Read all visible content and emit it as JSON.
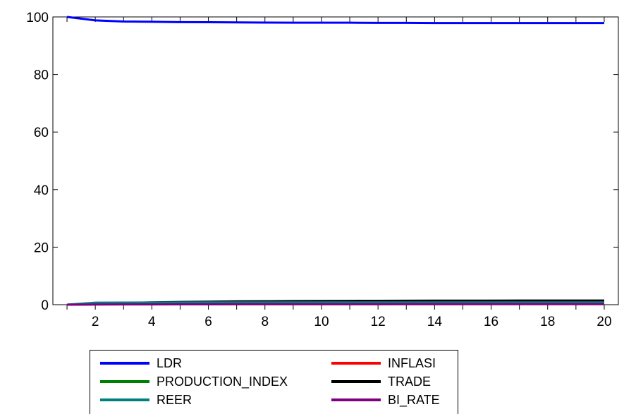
{
  "chart_data": {
    "type": "line",
    "x": [
      1,
      2,
      3,
      4,
      5,
      6,
      7,
      8,
      9,
      10,
      11,
      12,
      13,
      14,
      15,
      16,
      17,
      18,
      19,
      20
    ],
    "xticks": [
      "2",
      "4",
      "6",
      "8",
      "10",
      "12",
      "14",
      "16",
      "18",
      "20"
    ],
    "yticks": [
      "0",
      "20",
      "40",
      "60",
      "80",
      "100"
    ],
    "ylim": [
      0,
      100
    ],
    "xlim": [
      0.5,
      20.5
    ],
    "grid": false,
    "legend_position": "bottom",
    "series": [
      {
        "name": "LDR",
        "color": "#0000ff",
        "values": [
          100,
          98.8,
          98.4,
          98.3,
          98.2,
          98.15,
          98.1,
          98.05,
          98.0,
          98.0,
          98.0,
          97.95,
          97.95,
          97.9,
          97.9,
          97.9,
          97.9,
          97.9,
          97.9,
          97.9
        ]
      },
      {
        "name": "INFLASI",
        "color": "#ff0000",
        "values": [
          0,
          0.1,
          0.12,
          0.14,
          0.15,
          0.16,
          0.17,
          0.17,
          0.18,
          0.18,
          0.18,
          0.19,
          0.19,
          0.19,
          0.19,
          0.2,
          0.2,
          0.2,
          0.2,
          0.2
        ]
      },
      {
        "name": "PRODUCTION_INDEX",
        "color": "#008000",
        "values": [
          0,
          0.2,
          0.25,
          0.28,
          0.3,
          0.32,
          0.33,
          0.34,
          0.35,
          0.35,
          0.36,
          0.36,
          0.36,
          0.37,
          0.37,
          0.37,
          0.37,
          0.37,
          0.37,
          0.37
        ]
      },
      {
        "name": "TRADE",
        "color": "#000000",
        "values": [
          0,
          0.4,
          0.6,
          0.8,
          0.95,
          1.05,
          1.15,
          1.2,
          1.25,
          1.3,
          1.33,
          1.36,
          1.38,
          1.4,
          1.41,
          1.42,
          1.43,
          1.44,
          1.45,
          1.45
        ]
      },
      {
        "name": "REER",
        "color": "#008080",
        "values": [
          0,
          0.7,
          0.75,
          0.78,
          0.8,
          0.8,
          0.8,
          0.8,
          0.8,
          0.8,
          0.8,
          0.8,
          0.8,
          0.8,
          0.8,
          0.8,
          0.8,
          0.8,
          0.8,
          0.8
        ]
      },
      {
        "name": "BI_RATE",
        "color": "#800080",
        "values": [
          0,
          0.05,
          0.08,
          0.1,
          0.12,
          0.13,
          0.14,
          0.15,
          0.15,
          0.16,
          0.16,
          0.16,
          0.17,
          0.17,
          0.17,
          0.17,
          0.17,
          0.17,
          0.17,
          0.17
        ]
      }
    ]
  }
}
